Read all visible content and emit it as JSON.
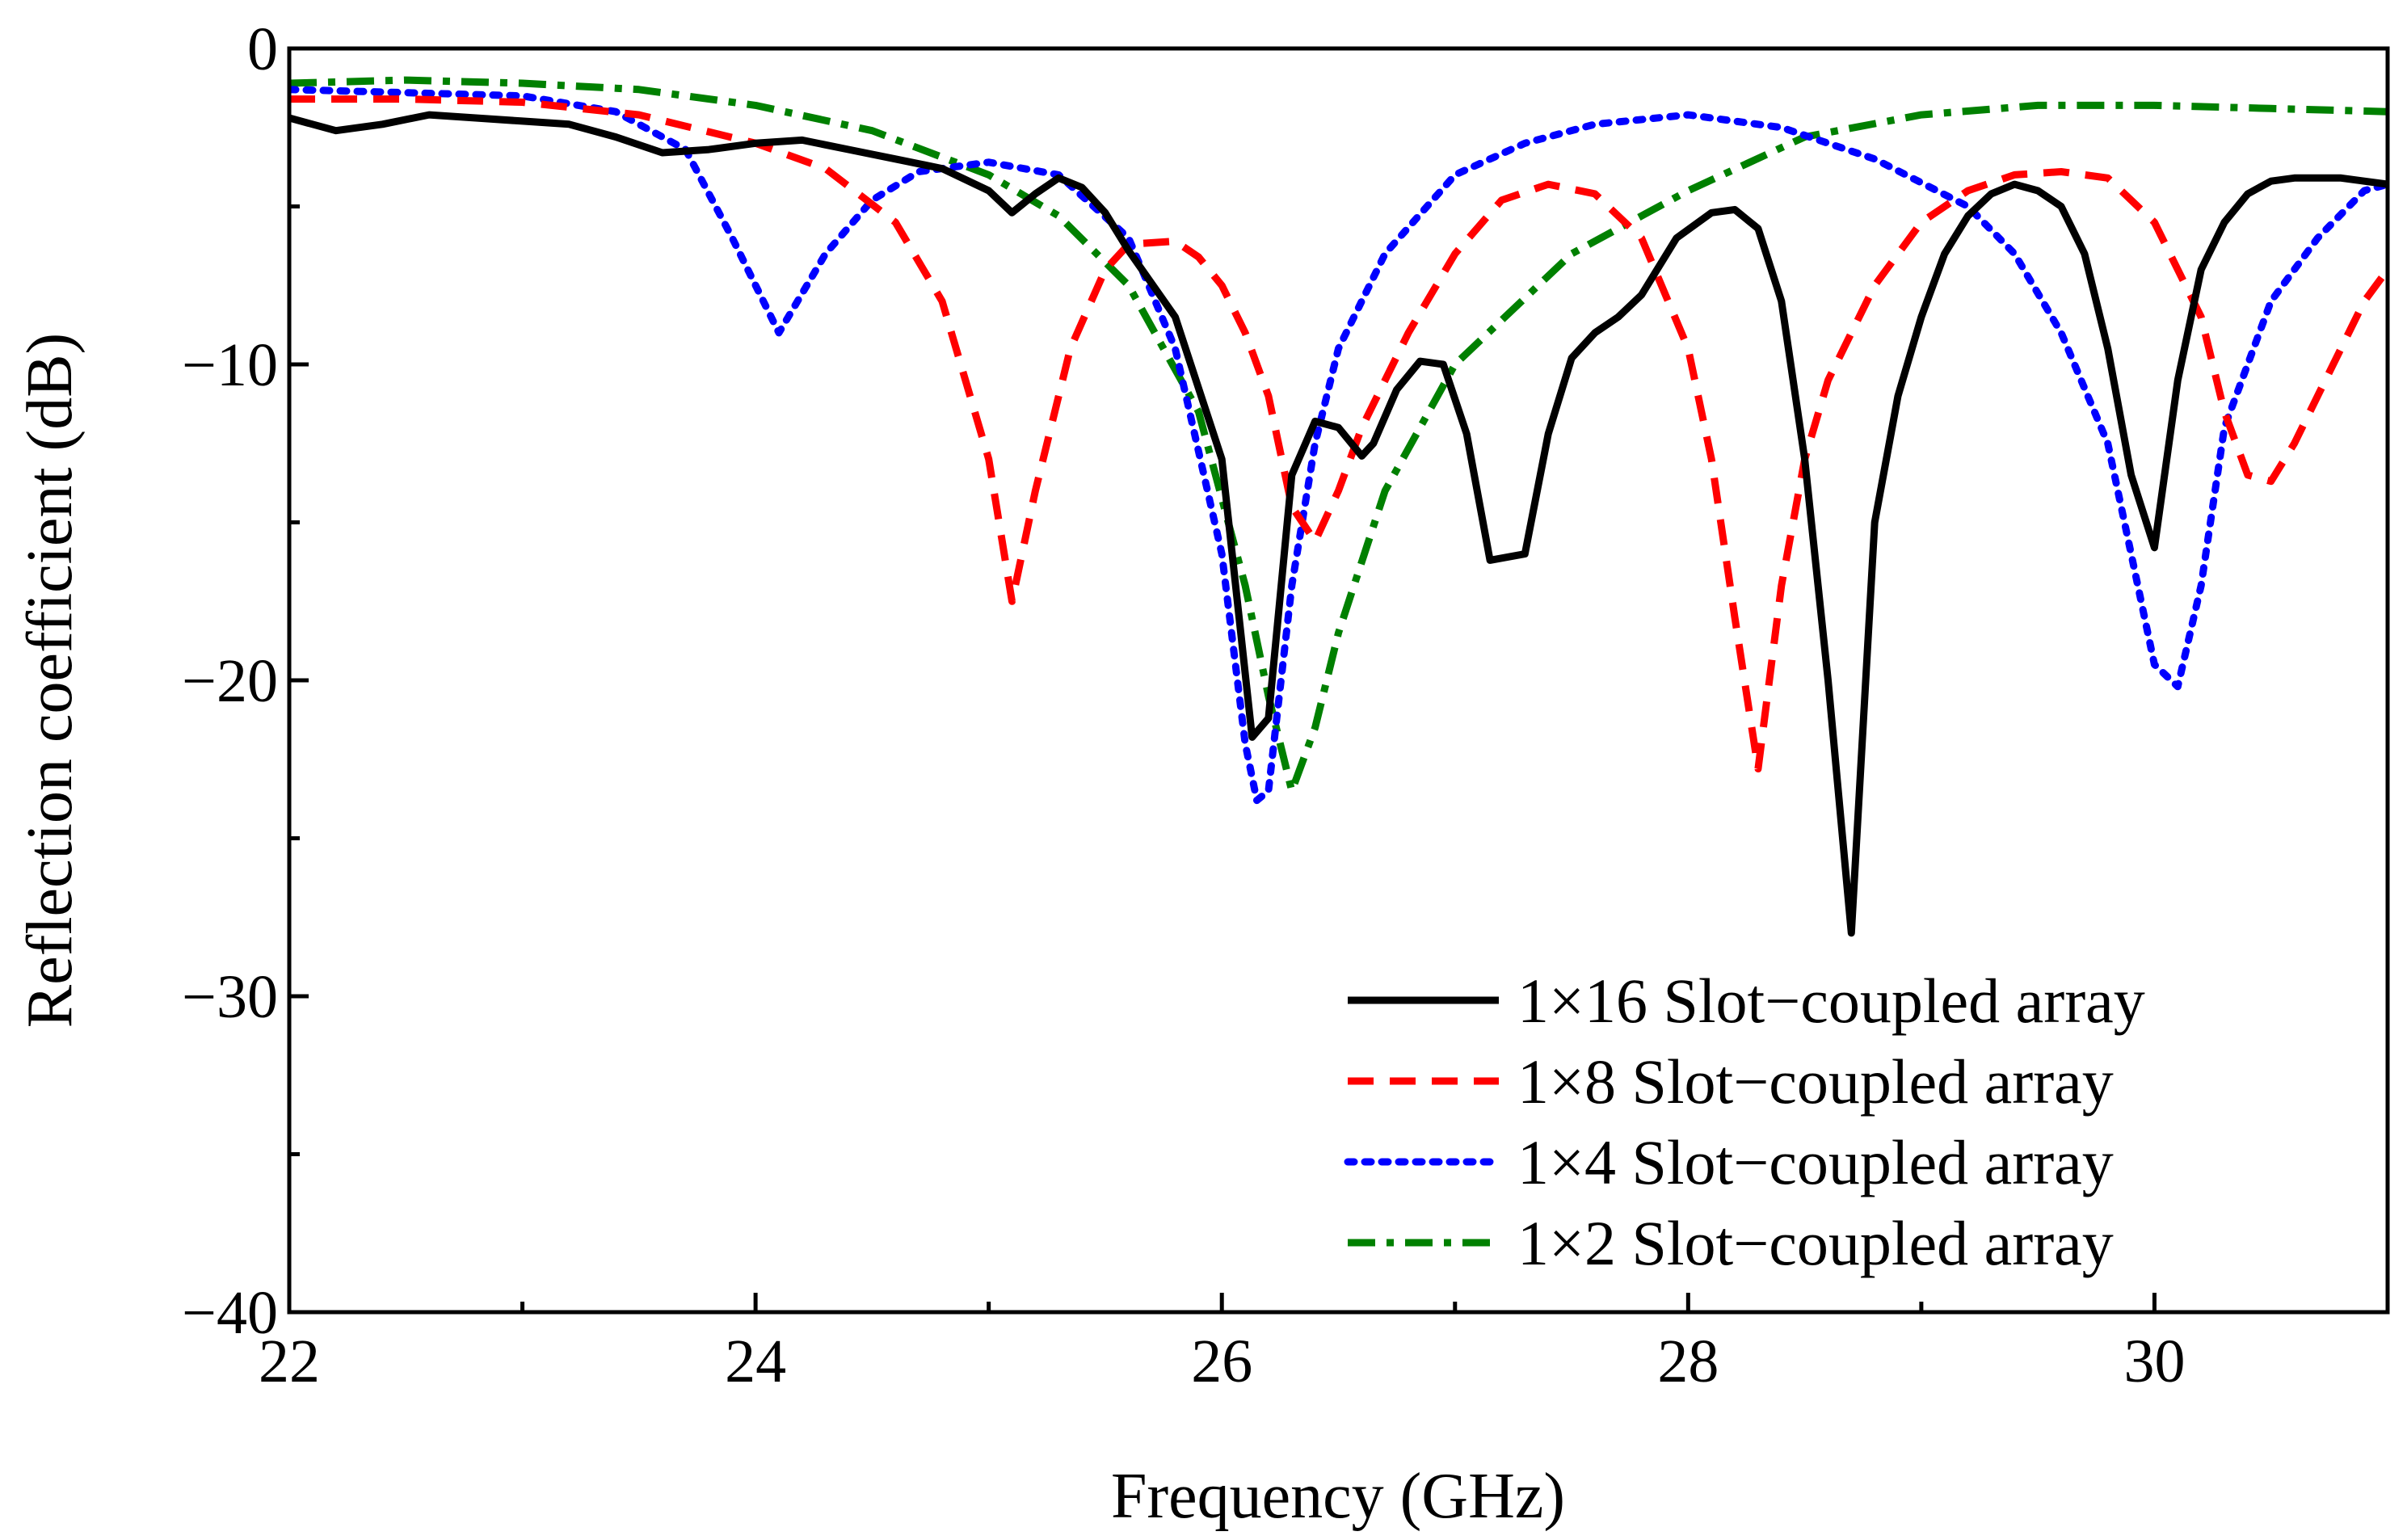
{
  "chart_data": {
    "type": "line",
    "xlabel": "Frequency (GHz)",
    "ylabel": "Reflection coefficient (dB)",
    "xlim": [
      22,
      31
    ],
    "ylim": [
      -40,
      0
    ],
    "xticks": [
      22,
      24,
      26,
      28,
      30
    ],
    "xtick_labels": [
      "22",
      "24",
      "26",
      "28",
      "30"
    ],
    "yticks": [
      0,
      -10,
      -20,
      -30,
      -40
    ],
    "ytick_labels": [
      "0",
      "−10",
      "−20",
      "−30",
      "−40"
    ],
    "grid": false,
    "legend_position": "bottom-right",
    "series": [
      {
        "name": "1×16 Slot−coupled array",
        "color": "#000000",
        "style": "solid",
        "x": [
          22.0,
          22.2,
          22.4,
          22.6,
          22.8,
          23.0,
          23.2,
          23.4,
          23.6,
          23.8,
          24.0,
          24.2,
          24.4,
          24.6,
          24.8,
          25.0,
          25.1,
          25.2,
          25.3,
          25.4,
          25.5,
          25.6,
          25.8,
          26.0,
          26.13,
          26.2,
          26.3,
          26.4,
          26.5,
          26.6,
          26.65,
          26.75,
          26.85,
          26.95,
          27.05,
          27.15,
          27.3,
          27.4,
          27.5,
          27.6,
          27.7,
          27.8,
          27.95,
          28.1,
          28.2,
          28.3,
          28.4,
          28.5,
          28.6,
          28.7,
          28.8,
          28.9,
          29.0,
          29.1,
          29.2,
          29.3,
          29.4,
          29.5,
          29.6,
          29.7,
          29.8,
          29.9,
          30.0,
          30.1,
          30.2,
          30.3,
          30.4,
          30.5,
          30.6,
          30.7,
          30.8,
          30.9,
          31.0
        ],
        "y": [
          -2.2,
          -2.6,
          -2.4,
          -2.1,
          -2.2,
          -2.3,
          -2.4,
          -2.8,
          -3.3,
          -3.2,
          -3.0,
          -2.9,
          -3.2,
          -3.5,
          -3.8,
          -4.5,
          -5.2,
          -4.6,
          -4.1,
          -4.4,
          -5.2,
          -6.4,
          -8.5,
          -13.0,
          -21.8,
          -21.2,
          -13.5,
          -11.8,
          -12.0,
          -12.9,
          -12.5,
          -10.8,
          -9.9,
          -10.0,
          -12.2,
          -16.2,
          -16.0,
          -12.2,
          -9.8,
          -9.0,
          -8.5,
          -7.8,
          -6.0,
          -5.2,
          -5.1,
          -5.7,
          -8.0,
          -13.0,
          -20.0,
          -28.0,
          -15.0,
          -11.0,
          -8.5,
          -6.5,
          -5.3,
          -4.6,
          -4.3,
          -4.5,
          -5.0,
          -6.5,
          -9.5,
          -13.5,
          -15.8,
          -10.5,
          -7.0,
          -5.5,
          -4.6,
          -4.2,
          -4.1,
          -4.1,
          -4.1,
          -4.2,
          -4.3
        ]
      },
      {
        "name": "1×8 Slot−coupled array",
        "color": "#ff0000",
        "style": "dashed",
        "x": [
          22.0,
          22.5,
          23.0,
          23.5,
          24.0,
          24.3,
          24.6,
          24.8,
          25.0,
          25.1,
          25.2,
          25.35,
          25.5,
          25.6,
          25.8,
          25.9,
          26.0,
          26.1,
          26.2,
          26.3,
          26.4,
          26.5,
          26.6,
          26.8,
          27.0,
          27.2,
          27.4,
          27.6,
          27.8,
          28.0,
          28.1,
          28.2,
          28.3,
          28.4,
          28.5,
          28.6,
          28.8,
          29.0,
          29.2,
          29.4,
          29.6,
          29.8,
          30.0,
          30.2,
          30.3,
          30.4,
          30.5,
          30.6,
          30.7,
          30.8,
          30.9,
          31.0
        ],
        "y": [
          -1.6,
          -1.6,
          -1.7,
          -2.1,
          -3.0,
          -3.8,
          -5.5,
          -8.0,
          -13.0,
          -17.5,
          -14.0,
          -9.5,
          -7.0,
          -6.2,
          -6.1,
          -6.6,
          -7.5,
          -9.0,
          -11.0,
          -14.5,
          -15.6,
          -14.0,
          -12.0,
          -9.0,
          -6.5,
          -4.8,
          -4.3,
          -4.6,
          -6.0,
          -9.5,
          -13.0,
          -18.0,
          -22.8,
          -17.0,
          -13.0,
          -10.5,
          -7.5,
          -5.5,
          -4.5,
          -4.0,
          -3.9,
          -4.1,
          -5.5,
          -8.5,
          -11.5,
          -13.5,
          -13.7,
          -12.5,
          -11.0,
          -9.5,
          -8.0,
          -7.0
        ]
      },
      {
        "name": "1×4 Slot−coupled array",
        "color": "#0000ff",
        "style": "dotted",
        "x": [
          22.0,
          22.5,
          23.0,
          23.4,
          23.7,
          23.9,
          24.1,
          24.3,
          24.5,
          24.7,
          25.0,
          25.3,
          25.6,
          25.8,
          26.0,
          26.1,
          26.15,
          26.2,
          26.3,
          26.4,
          26.5,
          26.7,
          27.0,
          27.3,
          27.6,
          28.0,
          28.4,
          28.8,
          29.2,
          29.4,
          29.6,
          29.8,
          29.9,
          30.0,
          30.1,
          30.2,
          30.3,
          30.5,
          30.7,
          30.9,
          31.0
        ],
        "y": [
          -1.3,
          -1.4,
          -1.5,
          -2.0,
          -3.2,
          -6.0,
          -9.0,
          -6.5,
          -4.8,
          -3.9,
          -3.6,
          -4.0,
          -6.0,
          -9.5,
          -16.0,
          -22.0,
          -23.8,
          -23.5,
          -17.0,
          -12.5,
          -9.5,
          -6.5,
          -4.0,
          -3.0,
          -2.4,
          -2.1,
          -2.5,
          -3.5,
          -5.0,
          -6.5,
          -9.0,
          -12.5,
          -16.0,
          -19.5,
          -20.2,
          -17.0,
          -12.0,
          -8.0,
          -6.0,
          -4.5,
          -4.3
        ]
      },
      {
        "name": "1×2 Slot−coupled array",
        "color": "#008000",
        "style": "dashdot",
        "x": [
          22.0,
          22.5,
          23.0,
          23.5,
          24.0,
          24.5,
          25.0,
          25.3,
          25.6,
          25.9,
          26.1,
          26.2,
          26.3,
          26.4,
          26.5,
          26.7,
          27.0,
          27.5,
          28.0,
          28.5,
          29.0,
          29.5,
          30.0,
          30.5,
          31.0
        ],
        "y": [
          -1.1,
          -1.0,
          -1.1,
          -1.3,
          -1.8,
          -2.6,
          -4.0,
          -5.3,
          -7.5,
          -11.5,
          -17.0,
          -20.5,
          -23.5,
          -21.5,
          -18.5,
          -14.0,
          -10.0,
          -6.5,
          -4.5,
          -2.8,
          -2.1,
          -1.8,
          -1.8,
          -1.9,
          -2.0
        ]
      }
    ]
  }
}
